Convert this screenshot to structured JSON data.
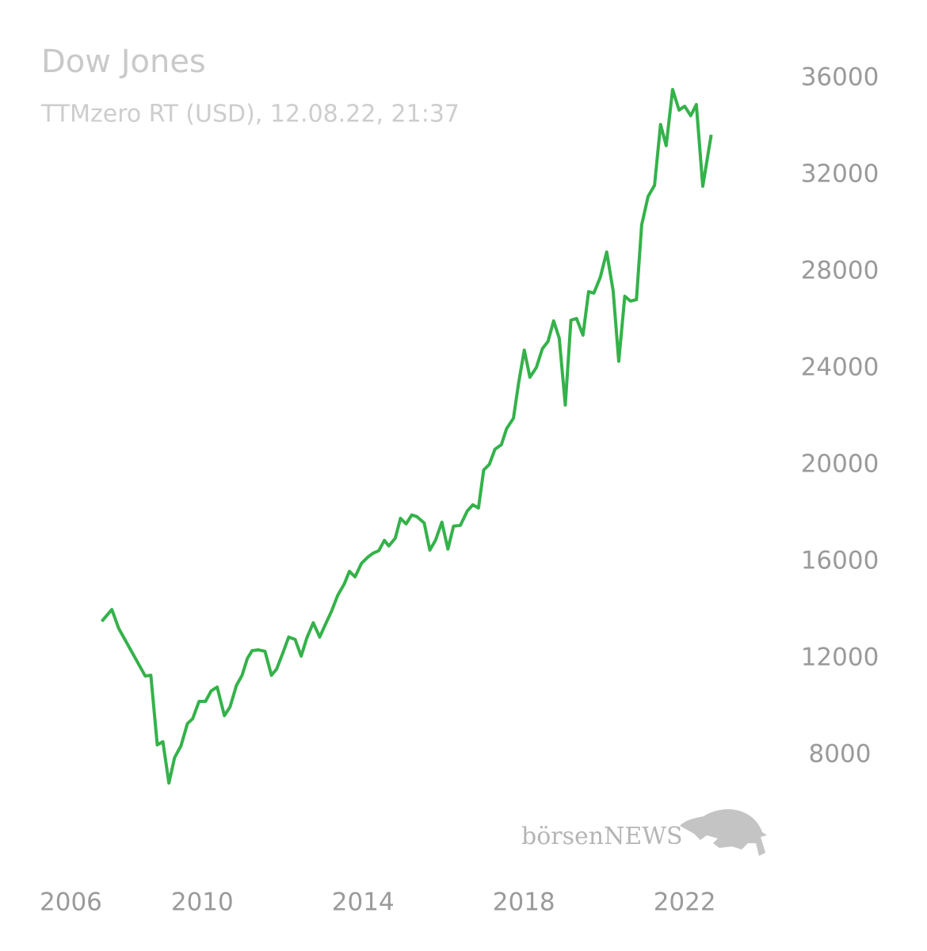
{
  "chart_data": {
    "type": "line",
    "title": "Dow Jones",
    "subtitle": "TTMzero RT (USD), 12.08.22, 21:37",
    "logo": "börsenNEWS",
    "xlim": [
      2005.5,
      2024.5
    ],
    "xticks": [
      2006,
      2010,
      2014,
      2018,
      2022
    ],
    "ylim": [
      6000,
      36000
    ],
    "yticks": [
      8000,
      12000,
      16000,
      20000,
      24000,
      28000,
      32000,
      36000
    ],
    "x": [
      2007.5,
      2007.75,
      2007.92,
      2008.58,
      2008.72,
      2008.88,
      2009.02,
      2009.17,
      2009.31,
      2009.47,
      2009.63,
      2009.76,
      2009.92,
      2010.08,
      2010.22,
      2010.37,
      2010.55,
      2010.69,
      2010.85,
      2010.99,
      2011.12,
      2011.24,
      2011.4,
      2011.56,
      2011.72,
      2011.85,
      2012.01,
      2012.15,
      2012.31,
      2012.46,
      2012.6,
      2012.76,
      2012.92,
      2013.07,
      2013.21,
      2013.37,
      2013.53,
      2013.66,
      2013.8,
      2013.96,
      2014.12,
      2014.25,
      2014.39,
      2014.53,
      2014.64,
      2014.8,
      2014.93,
      2015.07,
      2015.21,
      2015.34,
      2015.52,
      2015.66,
      2015.8,
      2015.96,
      2016.11,
      2016.25,
      2016.42,
      2016.59,
      2016.73,
      2016.87,
      2017.0,
      2017.14,
      2017.28,
      2017.44,
      2017.57,
      2017.74,
      2017.87,
      2018.01,
      2018.15,
      2018.31,
      2018.46,
      2018.6,
      2018.74,
      2018.88,
      2019.03,
      2019.17,
      2019.31,
      2019.47,
      2019.61,
      2019.74,
      2019.9,
      2020.06,
      2020.22,
      2020.36,
      2020.51,
      2020.65,
      2020.8,
      2020.93,
      2021.09,
      2021.25,
      2021.4,
      2021.54,
      2021.7,
      2021.86,
      2022.0,
      2022.15,
      2022.29,
      2022.45,
      2022.66
    ],
    "series": [
      {
        "name": "Dow Jones",
        "color": "#34b24a",
        "values": [
          13540,
          14030,
          13250,
          11280,
          11310,
          8430,
          8560,
          6850,
          7900,
          8390,
          9310,
          9510,
          10230,
          10230,
          10660,
          10820,
          9640,
          10000,
          10890,
          11310,
          12000,
          12330,
          12360,
          12300,
          11310,
          11570,
          12260,
          12890,
          12790,
          12100,
          12850,
          13480,
          12890,
          13440,
          13940,
          14620,
          15080,
          15610,
          15380,
          15940,
          16200,
          16360,
          16460,
          16890,
          16660,
          16980,
          17800,
          17570,
          17940,
          17870,
          17610,
          16490,
          16890,
          17640,
          16530,
          17480,
          17510,
          18100,
          18360,
          18230,
          19800,
          20030,
          20660,
          20850,
          21510,
          21940,
          23410,
          24760,
          23640,
          24040,
          24820,
          25120,
          25970,
          25250,
          22490,
          26000,
          26070,
          25380,
          27180,
          27120,
          27770,
          28820,
          27220,
          24300,
          26990,
          26790,
          26850,
          29940,
          31120,
          31580,
          34100,
          33220,
          35540,
          34690,
          34850,
          34460,
          34920,
          31540,
          33670
        ]
      }
    ]
  }
}
